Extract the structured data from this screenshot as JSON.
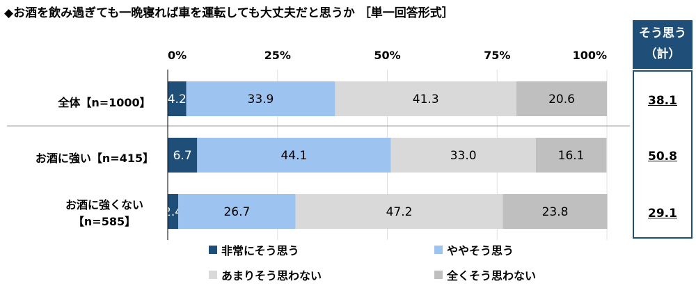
{
  "title": "◆お酒を飲み過ぎても一晩寝れば車を運転しても大丈夫だと思うか ［単一回答形式］",
  "side_header": {
    "line1": "そう思う",
    "line2": "（計）"
  },
  "rows": [
    {
      "label_lines": [
        "全体【n=1000】"
      ],
      "total": "38.1"
    },
    {
      "label_lines": [
        "お酒に強い【n=415】"
      ],
      "total": "50.8"
    },
    {
      "label_lines": [
        "お酒に強くない",
        "【n=585】"
      ],
      "total": "29.1"
    }
  ],
  "chart_data": {
    "type": "bar",
    "orientation": "horizontal",
    "stacked": "percent",
    "xlim": [
      0,
      100
    ],
    "ticks": [
      "0%",
      "25%",
      "50%",
      "75%",
      "100%"
    ],
    "categories": [
      "全体【n=1000】",
      "お酒に強い【n=415】",
      "お酒に強くない【n=585】"
    ],
    "series": [
      {
        "name": "非常にそう思う",
        "color": "#1f4e79",
        "text_color": "#ffffff",
        "values": [
          4.2,
          6.7,
          2.4
        ]
      },
      {
        "name": "ややそう思う",
        "color": "#9dc3f0",
        "text_color": "#000000",
        "values": [
          33.9,
          44.1,
          26.7
        ]
      },
      {
        "name": "あまりそう思わない",
        "color": "#d9d9d9",
        "text_color": "#000000",
        "values": [
          41.3,
          33.0,
          47.2
        ]
      },
      {
        "name": "全くそう思わない",
        "color": "#bfbfbf",
        "text_color": "#000000",
        "values": [
          20.6,
          16.1,
          23.8
        ]
      }
    ]
  }
}
